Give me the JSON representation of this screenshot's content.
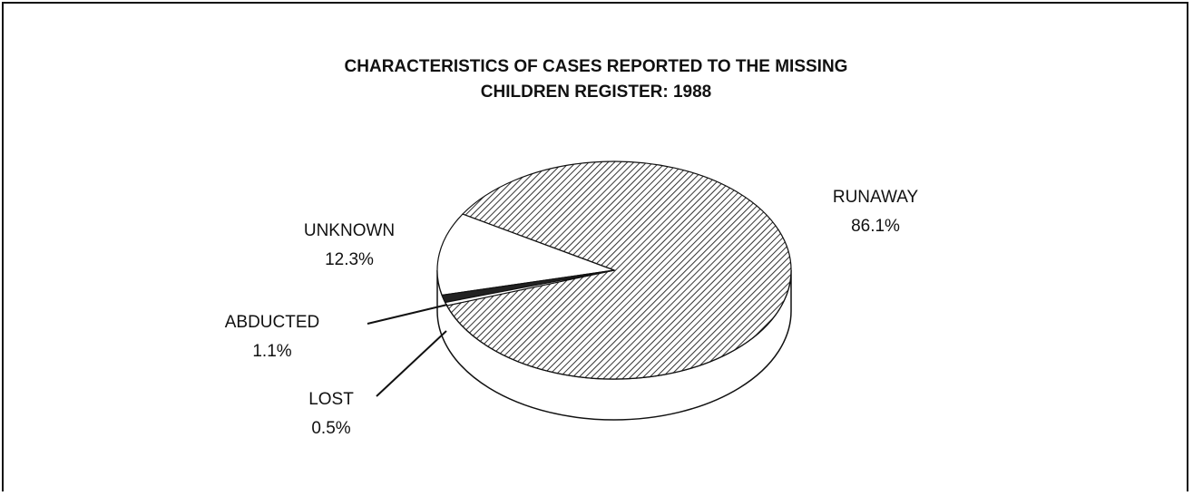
{
  "chart_data": {
    "type": "pie",
    "title": "CHARACTERISTICS OF CASES REPORTED TO THE MISSING CHILDREN REGISTER: 1988",
    "categories": [
      "RUNAWAY",
      "UNKNOWN",
      "ABDUCTED",
      "LOST"
    ],
    "values": [
      86.1,
      12.3,
      1.1,
      0.5
    ],
    "value_labels": [
      "86.1%",
      "12.3%",
      "1.1%",
      "0.5%"
    ],
    "colors": [
      "hatch",
      "#ffffff",
      "#222222",
      "#ffffff"
    ]
  }
}
